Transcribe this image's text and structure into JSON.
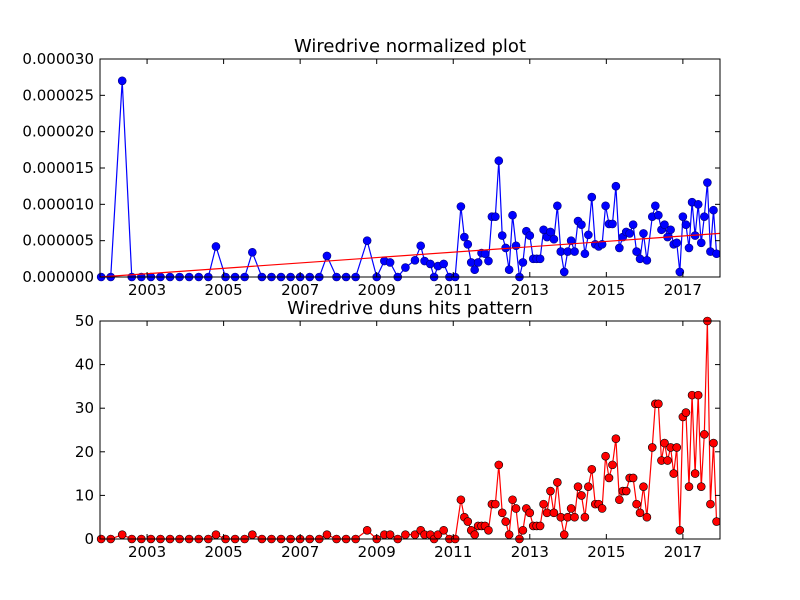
{
  "chart_data": [
    {
      "type": "line",
      "title": "Wiredrive normalized plot",
      "color": "#0000ff",
      "marker_edge": "#000080",
      "xlim": [
        2001.77,
        2017.97
      ],
      "xticks": [
        2003,
        2005,
        2007,
        2009,
        2011,
        2013,
        2015,
        2017
      ],
      "ylim": [
        0,
        3e-05
      ],
      "yticks": [
        {
          "value": 0,
          "label": "0.000000"
        },
        {
          "value": 5e-06,
          "label": "0.000005"
        },
        {
          "value": 1e-05,
          "label": "0.000010"
        },
        {
          "value": 1.5e-05,
          "label": "0.000015"
        },
        {
          "value": 2e-05,
          "label": "0.000020"
        },
        {
          "value": 2.5e-05,
          "label": "0.000025"
        },
        {
          "value": 3e-05,
          "label": "0.000030"
        }
      ],
      "x": [
        2001.8,
        2002.05,
        2002.35,
        2002.6,
        2002.85,
        2003.1,
        2003.35,
        2003.6,
        2003.85,
        2004.1,
        2004.35,
        2004.6,
        2004.8,
        2005.05,
        2005.3,
        2005.55,
        2005.75,
        2006.0,
        2006.25,
        2006.5,
        2006.75,
        2007.0,
        2007.25,
        2007.5,
        2007.7,
        2007.95,
        2008.2,
        2008.45,
        2008.75,
        2009.0,
        2009.2,
        2009.35,
        2009.55,
        2009.75,
        2010.0,
        2010.15,
        2010.25,
        2010.4,
        2010.5,
        2010.6,
        2010.75,
        2010.9,
        2011.05,
        2011.2,
        2011.29,
        2011.38,
        2011.47,
        2011.56,
        2011.65,
        2011.74,
        2011.83,
        2011.92,
        2012.01,
        2012.1,
        2012.19,
        2012.28,
        2012.37,
        2012.46,
        2012.55,
        2012.64,
        2012.73,
        2012.82,
        2012.91,
        2013.0,
        2013.09,
        2013.18,
        2013.27,
        2013.36,
        2013.45,
        2013.54,
        2013.63,
        2013.72,
        2013.81,
        2013.9,
        2013.99,
        2014.08,
        2014.17,
        2014.26,
        2014.35,
        2014.44,
        2014.53,
        2014.62,
        2014.71,
        2014.8,
        2014.89,
        2014.98,
        2015.07,
        2015.16,
        2015.25,
        2015.34,
        2015.43,
        2015.52,
        2015.61,
        2015.7,
        2015.79,
        2015.88,
        2015.97,
        2016.06,
        2016.2,
        2016.28,
        2016.36,
        2016.44,
        2016.52,
        2016.6,
        2016.68,
        2016.76,
        2016.84,
        2016.92,
        2017.0,
        2017.08,
        2017.16,
        2017.24,
        2017.32,
        2017.4,
        2017.48,
        2017.56,
        2017.64,
        2017.72,
        2017.8,
        2017.88
      ],
      "values": [
        0,
        0,
        2.7e-05,
        0,
        0,
        0,
        0,
        0,
        0,
        0,
        0,
        0,
        4.2e-06,
        0,
        0,
        0,
        3.4e-06,
        0,
        0,
        0,
        0,
        0,
        0,
        0,
        2.9e-06,
        0,
        0,
        0,
        5e-06,
        0,
        2.2e-06,
        2e-06,
        0,
        1.3e-06,
        2.3e-06,
        4.3e-06,
        2.2e-06,
        1.8e-06,
        0,
        1.5e-06,
        1.8e-06,
        0,
        0,
        9.7e-06,
        5.5e-06,
        4.5e-06,
        2e-06,
        1e-06,
        2e-06,
        3.3e-06,
        3.2e-06,
        2.2e-06,
        8.3e-06,
        8.3e-06,
        1.6e-05,
        5.7e-06,
        4e-06,
        1e-06,
        8.5e-06,
        4.3e-06,
        0,
        2e-06,
        6.3e-06,
        5.7e-06,
        2.5e-06,
        2.5e-06,
        2.5e-06,
        6.5e-06,
        5.5e-06,
        6.2e-06,
        5.2e-06,
        9.8e-06,
        3.5e-06,
        7e-07,
        3.5e-06,
        5e-06,
        3.5e-06,
        7.7e-06,
        7.2e-06,
        3.2e-06,
        5.8e-06,
        1.1e-05,
        4.5e-06,
        4.2e-06,
        4.5e-06,
        9.8e-06,
        7.3e-06,
        7.3e-06,
        1.25e-05,
        4e-06,
        5.5e-06,
        6.2e-06,
        6e-06,
        7.2e-06,
        3.5e-06,
        2.5e-06,
        6e-06,
        2.3e-06,
        8.3e-06,
        9.8e-06,
        8.5e-06,
        6.5e-06,
        7.2e-06,
        5.5e-06,
        6.5e-06,
        4.5e-06,
        4.7e-06,
        7e-07,
        8.3e-06,
        7.2e-06,
        4e-06,
        1.03e-05,
        5.7e-06,
        1e-05,
        4.7e-06,
        8.3e-06,
        1.3e-05,
        3.5e-06,
        9.2e-06,
        3.2e-06
      ],
      "trend": {
        "color": "#ff0000",
        "x": [
          2001.77,
          2017.97
        ],
        "values": [
          0,
          6e-06
        ]
      }
    },
    {
      "type": "line",
      "title": "Wiredrive duns hits pattern",
      "color": "#ff0000",
      "marker_edge": "#000000",
      "xlim": [
        2001.77,
        2017.97
      ],
      "xticks": [
        2003,
        2005,
        2007,
        2009,
        2011,
        2013,
        2015,
        2017
      ],
      "ylim": [
        0,
        50
      ],
      "yticks": [
        0,
        10,
        20,
        30,
        40,
        50
      ],
      "x": [
        2001.8,
        2002.05,
        2002.35,
        2002.6,
        2002.85,
        2003.1,
        2003.35,
        2003.6,
        2003.85,
        2004.1,
        2004.35,
        2004.6,
        2004.8,
        2005.05,
        2005.3,
        2005.55,
        2005.75,
        2006.0,
        2006.25,
        2006.5,
        2006.75,
        2007.0,
        2007.25,
        2007.5,
        2007.7,
        2007.95,
        2008.2,
        2008.45,
        2008.75,
        2009.0,
        2009.2,
        2009.35,
        2009.55,
        2009.75,
        2010.0,
        2010.15,
        2010.25,
        2010.4,
        2010.5,
        2010.6,
        2010.75,
        2010.9,
        2011.05,
        2011.2,
        2011.29,
        2011.38,
        2011.47,
        2011.56,
        2011.65,
        2011.74,
        2011.83,
        2011.92,
        2012.01,
        2012.1,
        2012.19,
        2012.28,
        2012.37,
        2012.46,
        2012.55,
        2012.64,
        2012.73,
        2012.82,
        2012.91,
        2013.0,
        2013.09,
        2013.18,
        2013.27,
        2013.36,
        2013.45,
        2013.54,
        2013.63,
        2013.72,
        2013.81,
        2013.9,
        2013.99,
        2014.08,
        2014.17,
        2014.26,
        2014.35,
        2014.44,
        2014.53,
        2014.62,
        2014.71,
        2014.8,
        2014.89,
        2014.98,
        2015.07,
        2015.16,
        2015.25,
        2015.34,
        2015.43,
        2015.52,
        2015.61,
        2015.7,
        2015.79,
        2015.88,
        2015.97,
        2016.06,
        2016.2,
        2016.28,
        2016.36,
        2016.44,
        2016.52,
        2016.6,
        2016.68,
        2016.76,
        2016.84,
        2016.92,
        2017.0,
        2017.08,
        2017.16,
        2017.24,
        2017.32,
        2017.4,
        2017.48,
        2017.56,
        2017.64,
        2017.72,
        2017.8,
        2017.88
      ],
      "values": [
        0,
        0,
        1,
        0,
        0,
        0,
        0,
        0,
        0,
        0,
        0,
        0,
        1,
        0,
        0,
        0,
        1,
        0,
        0,
        0,
        0,
        0,
        0,
        0,
        1,
        0,
        0,
        0,
        2,
        0,
        1,
        1,
        0,
        1,
        1,
        2,
        1,
        1,
        0,
        1,
        2,
        0,
        0,
        9,
        5,
        4,
        2,
        1,
        3,
        3,
        3,
        2,
        8,
        8,
        17,
        6,
        4,
        1,
        9,
        7,
        0,
        2,
        7,
        6,
        3,
        3,
        3,
        8,
        6,
        11,
        6,
        13,
        5,
        1,
        5,
        7,
        5,
        12,
        10,
        5,
        12,
        16,
        8,
        8,
        7,
        19,
        14,
        17,
        23,
        9,
        11,
        11,
        14,
        14,
        8,
        6,
        12,
        5,
        21,
        31,
        31,
        18,
        22,
        18,
        21,
        15,
        21,
        2,
        28,
        29,
        12,
        33,
        15,
        33,
        12,
        24,
        50,
        8,
        22,
        4
      ]
    }
  ]
}
